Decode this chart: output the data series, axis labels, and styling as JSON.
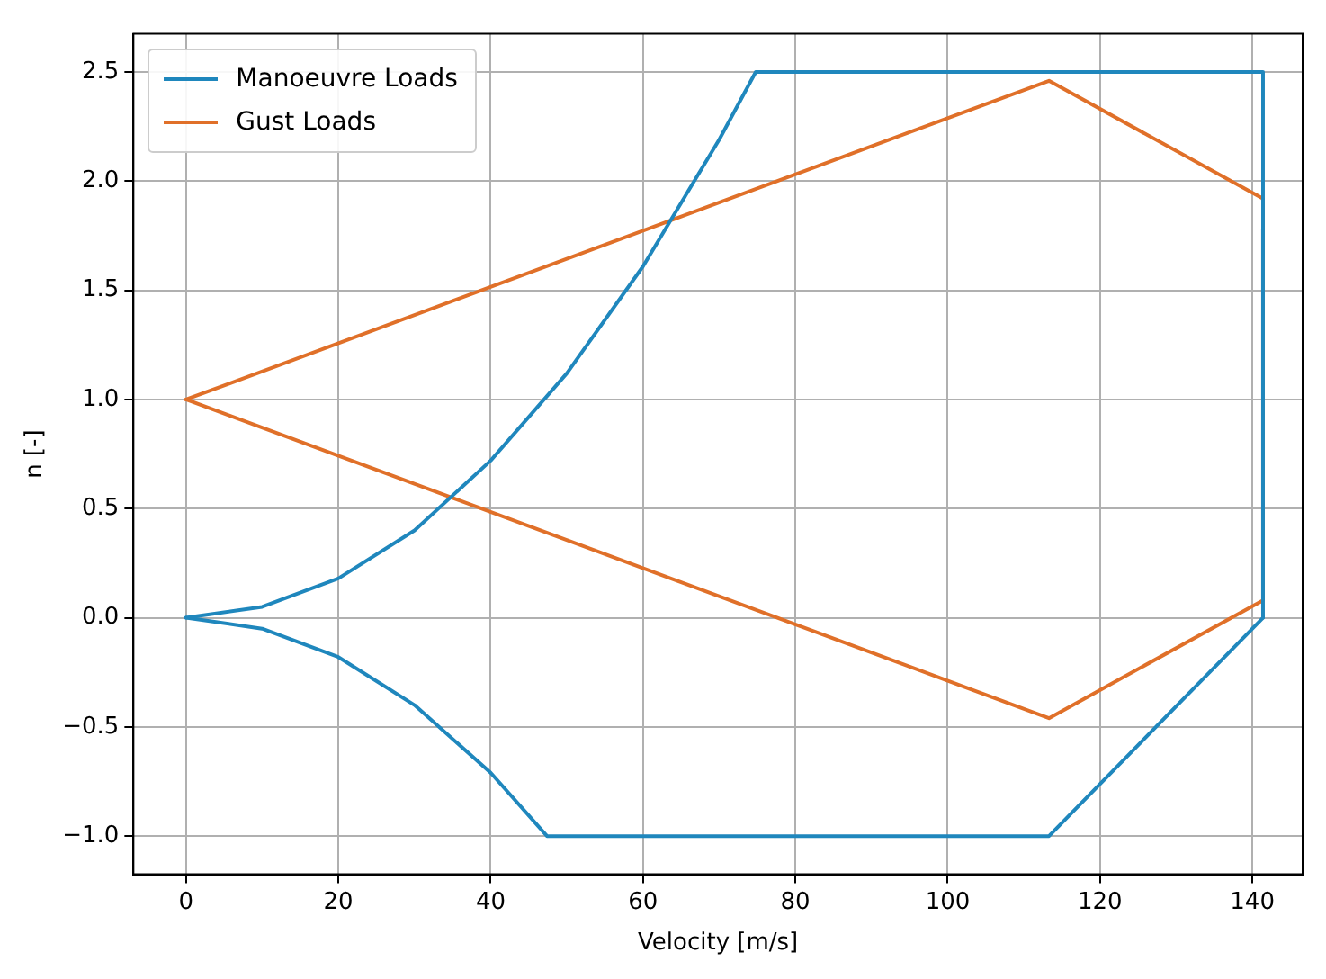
{
  "chart_data": {
    "type": "line",
    "xlabel": "Velocity [m/s]",
    "ylabel": "n [-]",
    "xlim": [
      -6.9,
      146.6
    ],
    "ylim": [
      -1.175,
      2.675
    ],
    "xticks": [
      0,
      20,
      40,
      60,
      80,
      100,
      120,
      140
    ],
    "yticks": [
      {
        "value": -1,
        "label": "−1.0"
      },
      {
        "value": -0.5,
        "label": "−0.5"
      },
      {
        "value": 0,
        "label": "0.0"
      },
      {
        "value": 0.5,
        "label": "0.5"
      },
      {
        "value": 1,
        "label": "1.0"
      },
      {
        "value": 1.5,
        "label": "1.5"
      },
      {
        "value": 2,
        "label": "2.0"
      },
      {
        "value": 2.5,
        "label": "2.5"
      }
    ],
    "grid": true,
    "legend": "top left",
    "marker": "none",
    "line_style": "solid",
    "series": [
      {
        "name": "Manoeuvre Loads",
        "color": "#1f87bd",
        "x": [
          0,
          10,
          20,
          30,
          40,
          50,
          60,
          70,
          74.8,
          141.4,
          141.4
        ],
        "values": [
          0,
          0.05,
          0.18,
          0.4,
          0.72,
          1.12,
          1.61,
          2.19,
          2.5,
          2.5,
          0
        ]
      },
      {
        "color": "#1f87bd",
        "x": [
          0,
          10,
          20,
          30,
          40,
          47.4,
          113.3,
          141.4
        ],
        "values": [
          0,
          -0.05,
          -0.18,
          -0.4,
          -0.71,
          -1,
          -1,
          0
        ]
      },
      {
        "name": "Gust Loads",
        "color": "#e07029",
        "x": [
          0,
          113.3,
          141.4,
          141.4
        ],
        "values": [
          1,
          2.46,
          1.92,
          0.08
        ]
      },
      {
        "color": "#e07029",
        "x": [
          0,
          113.3,
          141.4
        ],
        "values": [
          1,
          -0.46,
          0.08
        ]
      }
    ]
  }
}
